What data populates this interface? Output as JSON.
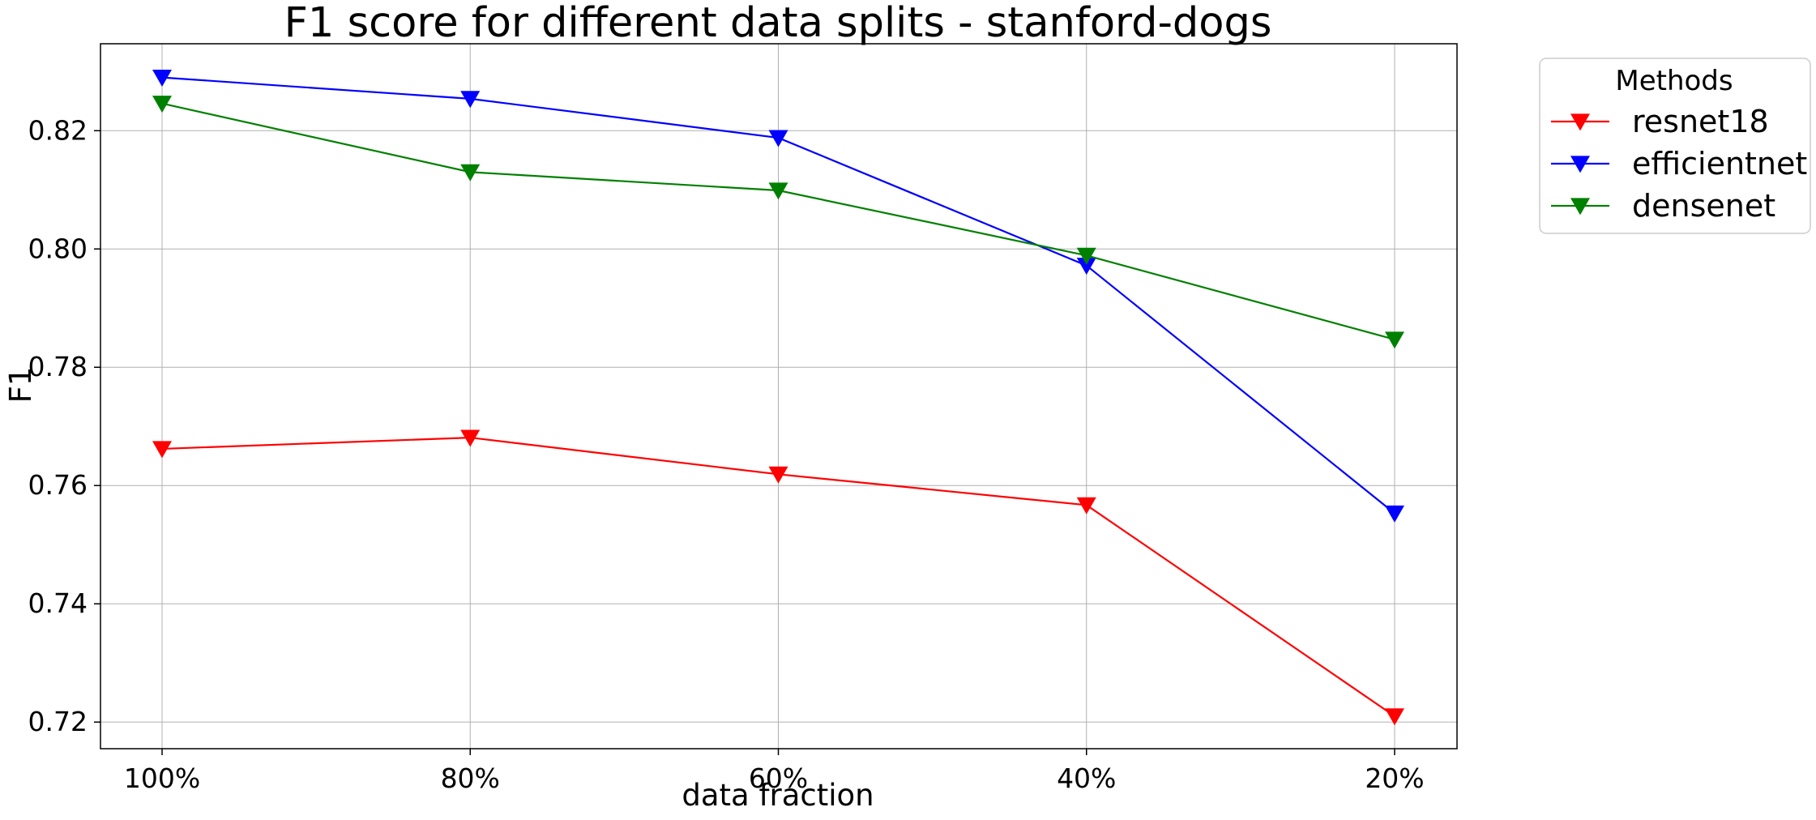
{
  "chart_data": {
    "type": "line",
    "title": "F1 score for different data splits - stanford-dogs",
    "xlabel": "data fraction",
    "ylabel": "F1",
    "categories": [
      "100%",
      "80%",
      "60%",
      "40%",
      "20%"
    ],
    "ylim": [
      0.7155,
      0.8347
    ],
    "yticks": [
      0.72,
      0.74,
      0.76,
      0.78,
      0.8,
      0.82
    ],
    "ytick_labels": [
      "0.72",
      "0.74",
      "0.76",
      "0.78",
      "0.80",
      "0.82"
    ],
    "grid": true,
    "marker": "triangle-down",
    "legend": {
      "title": "Methods",
      "placement": "outside-top-right"
    },
    "series": [
      {
        "name": "resnet18",
        "color": "#ff0000",
        "values": [
          0.7662,
          0.7681,
          0.7619,
          0.7567,
          0.721
        ]
      },
      {
        "name": "efficientnet",
        "color": "#0000ff",
        "values": [
          0.829,
          0.8254,
          0.8188,
          0.7972,
          0.7553
        ]
      },
      {
        "name": "densenet",
        "color": "#008000",
        "values": [
          0.8246,
          0.813,
          0.8099,
          0.7989,
          0.7847
        ]
      }
    ]
  }
}
